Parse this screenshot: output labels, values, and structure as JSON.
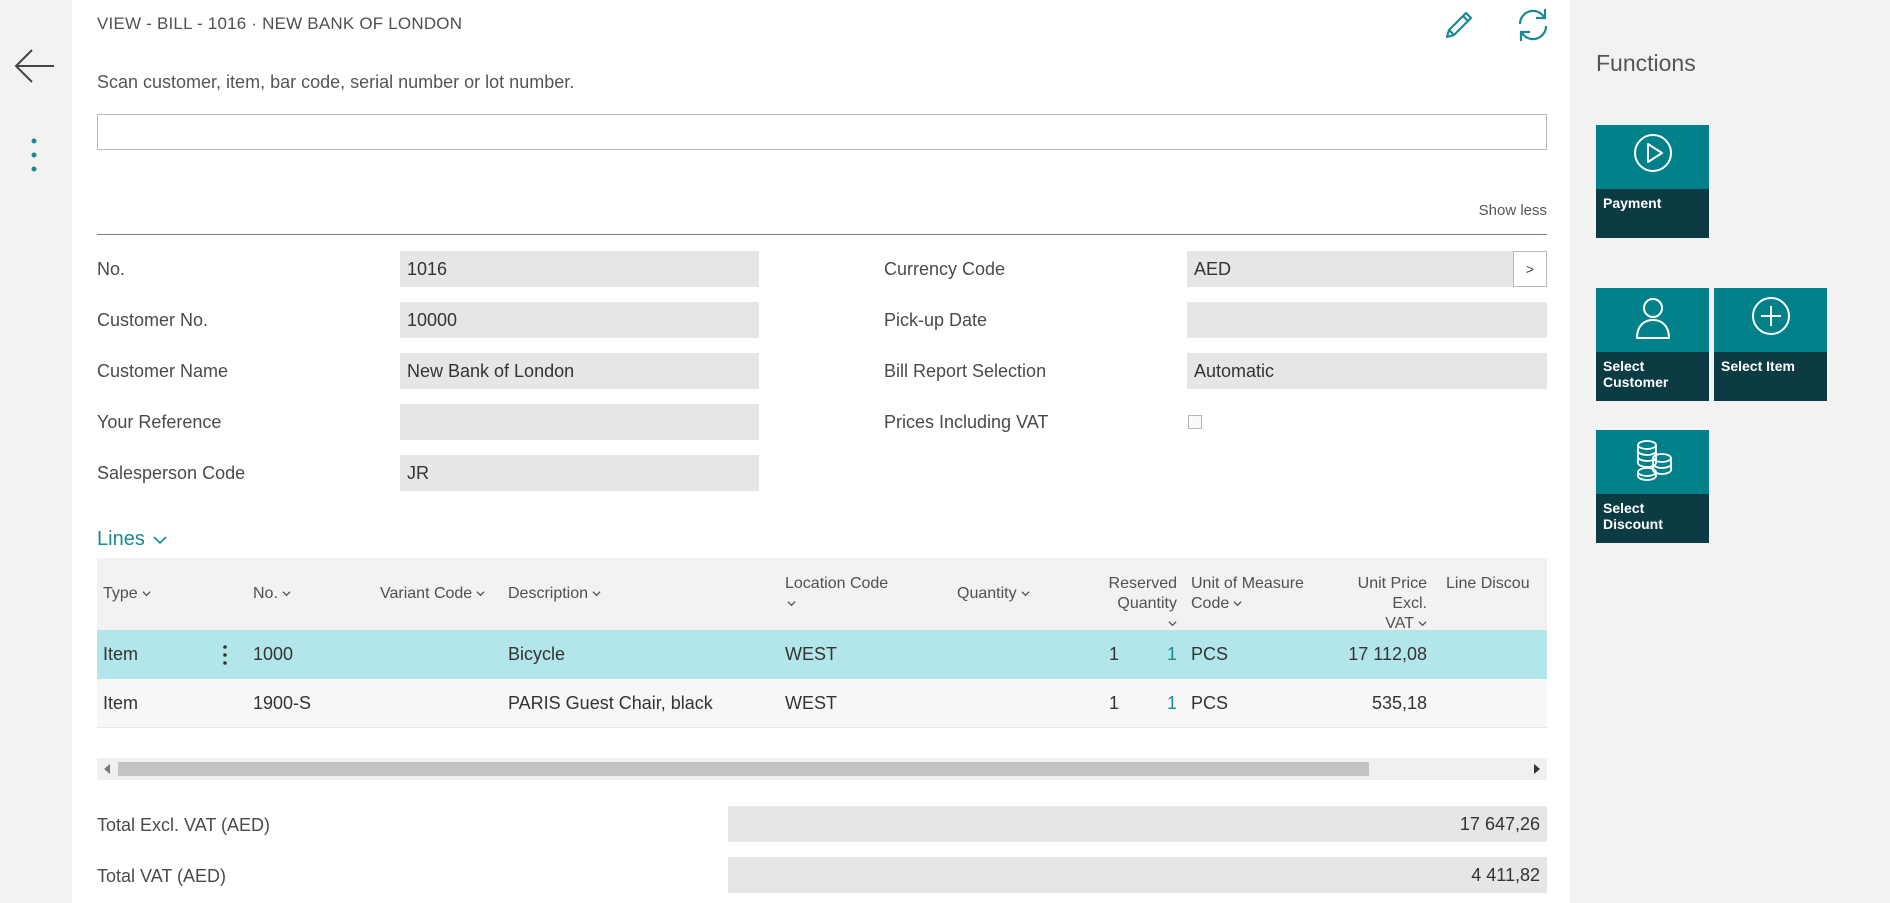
{
  "page": {
    "title": "VIEW - BILL - 1016 · NEW BANK OF LONDON",
    "scan_label": "Scan customer, item, bar code, serial number or lot number.",
    "scan_value": "",
    "show_less": "Show less"
  },
  "fields": {
    "no": {
      "label": "No.",
      "value": "1016"
    },
    "customer_no": {
      "label": "Customer No.",
      "value": "10000"
    },
    "customer_name": {
      "label": "Customer Name",
      "value": "New Bank of London"
    },
    "your_reference": {
      "label": "Your Reference",
      "value": ""
    },
    "salesperson_code": {
      "label": "Salesperson Code",
      "value": "JR"
    },
    "currency_code": {
      "label": "Currency Code",
      "value": "AED",
      "lookup": ">"
    },
    "pickup_date": {
      "label": "Pick-up Date",
      "value": ""
    },
    "bill_report_selection": {
      "label": "Bill Report Selection",
      "value": "Automatic"
    },
    "prices_incl_vat": {
      "label": "Prices Including VAT",
      "checked": false
    }
  },
  "lines": {
    "title": "Lines",
    "columns": {
      "type": "Type",
      "no": "No.",
      "variant_code": "Variant Code",
      "description": "Description",
      "location_code": "Location Code",
      "quantity": "Quantity",
      "reserved_quantity": "Reserved Quantity",
      "uom_code_1": "Unit of Measure",
      "uom_code_2": "Code",
      "unit_price_1": "Unit Price Excl.",
      "unit_price_2": "VAT",
      "line_discount": "Line Discou"
    },
    "rows": [
      {
        "type": "Item",
        "no": "1000",
        "variant_code": "",
        "description": "Bicycle",
        "location_code": "WEST",
        "quantity": "1",
        "reserved_quantity": "1",
        "uom": "PCS",
        "unit_price": "17 112,08",
        "selected": true
      },
      {
        "type": "Item",
        "no": "1900-S",
        "variant_code": "",
        "description": "PARIS Guest Chair, black",
        "location_code": "WEST",
        "quantity": "1",
        "reserved_quantity": "1",
        "uom": "PCS",
        "unit_price": "535,18",
        "selected": false
      }
    ]
  },
  "totals": {
    "excl_vat": {
      "label": "Total Excl. VAT (AED)",
      "value": "17 647,26"
    },
    "vat": {
      "label": "Total VAT (AED)",
      "value": "4 411,82"
    }
  },
  "functions": {
    "title": "Functions",
    "tiles": {
      "payment": "Payment",
      "select_customer": "Select Customer",
      "select_item": "Select Item",
      "select_discount": "Select Discount"
    }
  },
  "icons": {
    "back": "back-arrow-icon",
    "more": "more-vertical-icon",
    "edit": "pencil-icon",
    "refresh": "refresh-icon",
    "payment": "play-circle-icon",
    "customer": "person-icon",
    "item": "plus-circle-icon",
    "discount": "coins-icon"
  },
  "colors": {
    "accent": "#00818a",
    "tile_label_bg": "#0c3b43",
    "selected_row": "#b3e6ea",
    "link": "#1a8a91"
  }
}
